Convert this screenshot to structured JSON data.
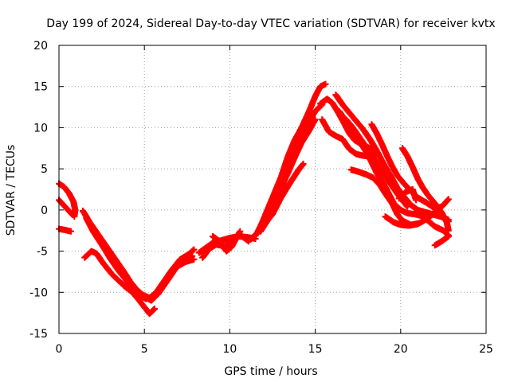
{
  "chart_data": {
    "type": "scatter",
    "title": "Day 199 of 2024, Sidereal Day-to-day VTEC variation (SDTVAR) for receiver kvtx",
    "xlabel": "GPS time / hours",
    "ylabel": "SDTVAR / TECUs",
    "xlim": [
      0,
      25
    ],
    "ylim": [
      -15,
      20
    ],
    "x_ticks": [
      0,
      5,
      10,
      15,
      20,
      25
    ],
    "y_ticks": [
      -15,
      -10,
      -5,
      0,
      5,
      10,
      15,
      20
    ],
    "grid": true,
    "legend": "none",
    "series": [
      {
        "name": "SDTVAR",
        "marker": "plus",
        "color": "#ff0000",
        "tracks": [
          [
            [
              0.0,
              3.2
            ],
            [
              0.3,
              2.8
            ],
            [
              0.6,
              2.0
            ],
            [
              0.85,
              1.0
            ],
            [
              0.95,
              0.0
            ],
            [
              0.9,
              -0.8
            ]
          ],
          [
            [
              0.0,
              1.2
            ],
            [
              0.4,
              0.3
            ],
            [
              0.8,
              -0.6
            ]
          ],
          [
            [
              0.0,
              -2.3
            ],
            [
              0.3,
              -2.4
            ],
            [
              0.7,
              -2.6
            ]
          ],
          [
            [
              1.4,
              -0.1
            ],
            [
              1.8,
              -1.5
            ],
            [
              2.3,
              -3.0
            ],
            [
              2.8,
              -4.5
            ],
            [
              3.3,
              -6.0
            ],
            [
              3.8,
              -7.5
            ],
            [
              4.2,
              -8.8
            ],
            [
              4.6,
              -9.8
            ],
            [
              5.0,
              -10.5
            ],
            [
              5.4,
              -11.0
            ],
            [
              5.8,
              -10.2
            ],
            [
              6.2,
              -9.0
            ],
            [
              6.7,
              -7.5
            ],
            [
              7.2,
              -6.0
            ],
            [
              7.7,
              -5.2
            ],
            [
              7.9,
              -4.8
            ]
          ],
          [
            [
              1.6,
              -1.0
            ],
            [
              2.0,
              -2.6
            ],
            [
              2.5,
              -4.2
            ],
            [
              3.0,
              -5.9
            ],
            [
              3.5,
              -7.4
            ],
            [
              4.0,
              -8.7
            ],
            [
              4.5,
              -9.6
            ],
            [
              4.9,
              -10.3
            ],
            [
              5.3,
              -10.7
            ],
            [
              5.7,
              -10.0
            ],
            [
              6.1,
              -8.8
            ],
            [
              6.6,
              -7.3
            ],
            [
              7.1,
              -6.0
            ],
            [
              7.5,
              -5.5
            ],
            [
              7.8,
              -5.6
            ]
          ],
          [
            [
              1.5,
              -5.8
            ],
            [
              1.9,
              -5.0
            ],
            [
              2.2,
              -5.3
            ],
            [
              2.6,
              -6.5
            ],
            [
              3.1,
              -7.8
            ],
            [
              3.6,
              -8.8
            ],
            [
              4.1,
              -9.6
            ],
            [
              4.6,
              -10.3
            ],
            [
              5.1,
              -10.8
            ],
            [
              5.5,
              -10.5
            ],
            [
              5.9,
              -9.5
            ],
            [
              6.4,
              -8.0
            ],
            [
              6.9,
              -6.9
            ],
            [
              7.4,
              -6.3
            ],
            [
              7.9,
              -6.0
            ]
          ],
          [
            [
              3.8,
              -9.2
            ],
            [
              4.3,
              -10.0
            ],
            [
              4.7,
              -11.0
            ],
            [
              5.0,
              -11.8
            ],
            [
              5.3,
              -12.6
            ],
            [
              5.6,
              -12.0
            ]
          ],
          [
            [
              8.2,
              -5.2
            ],
            [
              8.6,
              -4.6
            ],
            [
              9.0,
              -4.0
            ],
            [
              9.5,
              -3.7
            ],
            [
              10.0,
              -3.4
            ],
            [
              10.5,
              -3.2
            ],
            [
              11.0,
              -3.3
            ],
            [
              11.5,
              -3.5
            ]
          ],
          [
            [
              8.4,
              -5.8
            ],
            [
              8.8,
              -4.7
            ],
            [
              9.2,
              -4.2
            ],
            [
              9.7,
              -4.4
            ],
            [
              10.2,
              -3.6
            ],
            [
              10.6,
              -3.0
            ],
            [
              11.1,
              -3.8
            ]
          ],
          [
            [
              9.0,
              -3.2
            ],
            [
              9.4,
              -3.8
            ],
            [
              9.8,
              -5.0
            ],
            [
              10.1,
              -4.5
            ],
            [
              10.6,
              -2.6
            ]
          ],
          [
            [
              11.2,
              -3.6
            ],
            [
              11.6,
              -2.8
            ],
            [
              11.9,
              -1.5
            ],
            [
              12.2,
              0.0
            ],
            [
              12.6,
              2.0
            ],
            [
              13.0,
              4.0
            ],
            [
              13.4,
              6.5
            ],
            [
              13.8,
              8.5
            ],
            [
              14.2,
              10.0
            ],
            [
              14.6,
              11.8
            ],
            [
              15.0,
              13.8
            ],
            [
              15.3,
              15.0
            ],
            [
              15.6,
              15.3
            ]
          ],
          [
            [
              11.5,
              -3.1
            ],
            [
              11.9,
              -2.0
            ],
            [
              12.2,
              -0.5
            ],
            [
              12.6,
              1.5
            ],
            [
              13.0,
              3.5
            ],
            [
              13.4,
              5.6
            ],
            [
              13.8,
              7.4
            ],
            [
              14.2,
              9.0
            ],
            [
              14.6,
              10.6
            ],
            [
              15.0,
              12.0
            ],
            [
              15.4,
              12.8
            ]
          ],
          [
            [
              11.8,
              -2.6
            ],
            [
              12.2,
              -1.3
            ],
            [
              12.6,
              0.5
            ],
            [
              13.0,
              2.5
            ],
            [
              13.4,
              4.8
            ],
            [
              13.8,
              6.6
            ],
            [
              14.2,
              8.2
            ],
            [
              14.6,
              9.5
            ],
            [
              15.0,
              11.0
            ]
          ],
          [
            [
              12.0,
              -1.8
            ],
            [
              12.5,
              -0.5
            ],
            [
              13.0,
              1.5
            ],
            [
              13.5,
              3.2
            ],
            [
              14.0,
              4.8
            ],
            [
              14.3,
              5.6
            ]
          ],
          [
            [
              13.0,
              2.8
            ],
            [
              13.4,
              4.5
            ],
            [
              13.8,
              6.4
            ],
            [
              14.2,
              8.2
            ],
            [
              14.5,
              9.3
            ]
          ],
          [
            [
              15.3,
              12.9
            ],
            [
              15.7,
              13.5
            ],
            [
              16.0,
              13.0
            ],
            [
              16.3,
              12.0
            ],
            [
              16.7,
              10.5
            ],
            [
              17.0,
              9.3
            ],
            [
              17.3,
              8.5
            ],
            [
              17.7,
              8.0
            ],
            [
              18.2,
              7.5
            ],
            [
              18.6,
              6.8
            ]
          ],
          [
            [
              15.4,
              11.0
            ],
            [
              15.8,
              9.5
            ],
            [
              16.2,
              9.0
            ],
            [
              16.6,
              8.6
            ],
            [
              17.0,
              7.4
            ],
            [
              17.4,
              6.8
            ],
            [
              17.8,
              6.6
            ],
            [
              18.2,
              6.5
            ]
          ],
          [
            [
              16.2,
              14.0
            ],
            [
              16.6,
              12.8
            ],
            [
              17.0,
              11.8
            ],
            [
              17.4,
              10.8
            ],
            [
              17.8,
              9.8
            ],
            [
              18.2,
              8.6
            ],
            [
              18.6,
              7.2
            ],
            [
              19.0,
              5.6
            ],
            [
              19.4,
              4.2
            ],
            [
              19.8,
              2.7
            ],
            [
              20.2,
              1.6
            ],
            [
              20.6,
              0.6
            ],
            [
              21.0,
              0.0
            ],
            [
              21.5,
              -0.3
            ],
            [
              22.0,
              -0.6
            ],
            [
              22.5,
              -0.9
            ],
            [
              22.8,
              -1.2
            ]
          ],
          [
            [
              16.4,
              12.0
            ],
            [
              16.8,
              10.8
            ],
            [
              17.2,
              9.5
            ],
            [
              17.6,
              8.3
            ],
            [
              18.0,
              7.0
            ],
            [
              18.3,
              5.8
            ],
            [
              18.6,
              4.5
            ],
            [
              19.0,
              3.2
            ],
            [
              19.3,
              2.0
            ],
            [
              19.6,
              0.8
            ],
            [
              20.0,
              0.0
            ],
            [
              20.4,
              -0.4
            ],
            [
              20.8,
              -0.5
            ],
            [
              21.2,
              -0.7
            ],
            [
              21.6,
              -1.3
            ],
            [
              22.0,
              -2.0
            ],
            [
              22.5,
              -2.5
            ],
            [
              22.8,
              -3.1
            ]
          ],
          [
            [
              16.8,
              11.0
            ],
            [
              17.2,
              10.0
            ],
            [
              17.6,
              8.8
            ],
            [
              18.0,
              7.6
            ],
            [
              18.4,
              6.4
            ],
            [
              18.8,
              5.0
            ],
            [
              19.2,
              3.8
            ],
            [
              19.6,
              2.6
            ],
            [
              20.0,
              1.4
            ],
            [
              20.4,
              0.4
            ]
          ],
          [
            [
              18.3,
              10.4
            ],
            [
              18.6,
              9.3
            ],
            [
              18.9,
              8.0
            ],
            [
              19.2,
              6.6
            ],
            [
              19.5,
              5.3
            ],
            [
              19.8,
              4.2
            ],
            [
              20.2,
              3.2
            ],
            [
              20.6,
              2.3
            ],
            [
              21.0,
              1.5
            ],
            [
              21.5,
              0.9
            ],
            [
              22.0,
              0.2
            ],
            [
              22.4,
              0.4
            ],
            [
              22.8,
              1.3
            ]
          ],
          [
            [
              17.1,
              4.9
            ],
            [
              17.6,
              4.6
            ],
            [
              18.0,
              4.3
            ],
            [
              18.4,
              3.9
            ],
            [
              18.8,
              3.0
            ],
            [
              19.1,
              2.0
            ],
            [
              19.5,
              0.8
            ],
            [
              19.8,
              -0.5
            ],
            [
              20.1,
              -1.3
            ],
            [
              20.6,
              -1.8
            ],
            [
              21.1,
              -1.6
            ],
            [
              21.6,
              -1.0
            ],
            [
              22.0,
              -0.3
            ],
            [
              22.4,
              -0.8
            ],
            [
              22.8,
              -1.4
            ]
          ],
          [
            [
              19.1,
              -0.8
            ],
            [
              19.6,
              -1.5
            ],
            [
              20.0,
              -1.8
            ],
            [
              20.5,
              -1.9
            ],
            [
              21.0,
              -1.7
            ]
          ],
          [
            [
              20.1,
              7.5
            ],
            [
              20.4,
              6.5
            ],
            [
              20.7,
              5.2
            ],
            [
              21.0,
              3.8
            ],
            [
              21.3,
              2.7
            ],
            [
              21.6,
              1.8
            ],
            [
              22.0,
              0.8
            ],
            [
              22.4,
              -0.3
            ],
            [
              22.7,
              -1.5
            ],
            [
              22.8,
              -2.5
            ]
          ],
          [
            [
              19.9,
              1.4
            ],
            [
              20.3,
              2.2
            ],
            [
              20.7,
              2.5
            ],
            [
              20.9,
              1.2
            ]
          ],
          [
            [
              22.0,
              -4.3
            ],
            [
              22.4,
              -3.8
            ],
            [
              22.8,
              -3.2
            ]
          ]
        ]
      }
    ]
  }
}
